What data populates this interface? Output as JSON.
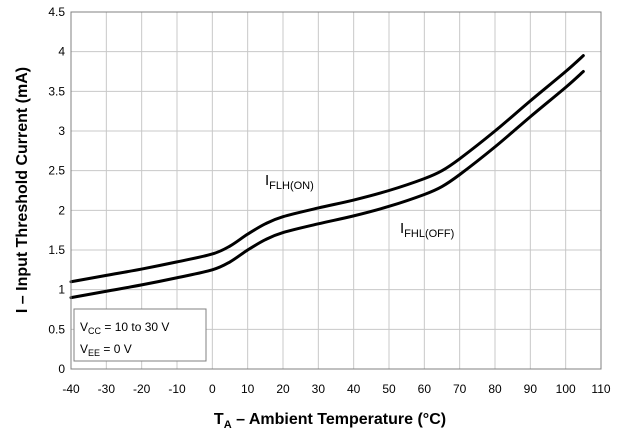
{
  "chart_data": {
    "type": "line",
    "title": "",
    "xlabel_main": "T",
    "xlabel_sub": "A",
    "xlabel_rest": " – Ambient Temperature (°C)",
    "ylabel": "I – Input Threshold Current (mA)",
    "xlim": [
      -40,
      110
    ],
    "ylim": [
      0,
      4.5
    ],
    "xticks": [
      "-40",
      "-30",
      "-20",
      "-10",
      "0",
      "10",
      "20",
      "30",
      "40",
      "50",
      "60",
      "70",
      "80",
      "90",
      "100",
      "110"
    ],
    "yticks": [
      "0",
      "0.5",
      "1",
      "1.5",
      "2",
      "2.5",
      "3",
      "3.5",
      "4",
      "4.5"
    ],
    "grid": true,
    "series": [
      {
        "name": "I_FLH(ON)",
        "label_main": "I",
        "label_sub": "FLH(ON)",
        "x": [
          -40,
          -30,
          -20,
          -10,
          0,
          5,
          10,
          15,
          20,
          30,
          40,
          50,
          60,
          65,
          70,
          80,
          90,
          100,
          105
        ],
        "y": [
          1.1,
          1.18,
          1.26,
          1.35,
          1.45,
          1.55,
          1.7,
          1.83,
          1.92,
          2.03,
          2.13,
          2.25,
          2.4,
          2.5,
          2.65,
          3.0,
          3.38,
          3.75,
          3.95
        ]
      },
      {
        "name": "I_FHL(OFF)",
        "label_main": "I",
        "label_sub": "FHL(OFF)",
        "x": [
          -40,
          -30,
          -20,
          -10,
          0,
          5,
          10,
          15,
          20,
          30,
          40,
          50,
          60,
          65,
          70,
          80,
          90,
          100,
          105
        ],
        "y": [
          0.9,
          0.98,
          1.06,
          1.15,
          1.25,
          1.35,
          1.5,
          1.63,
          1.72,
          1.83,
          1.93,
          2.05,
          2.2,
          2.3,
          2.45,
          2.8,
          3.18,
          3.55,
          3.75
        ]
      }
    ],
    "legend_box": {
      "line1_main": "V",
      "line1_sub": "CC",
      "line1_rest": " = 10 to 30 V",
      "line2_main": "V",
      "line2_sub": "EE",
      "line2_rest": " = 0 V"
    },
    "colors": {
      "line": "#000000",
      "grid": "#c8c8c8",
      "axis": "#808080"
    }
  }
}
